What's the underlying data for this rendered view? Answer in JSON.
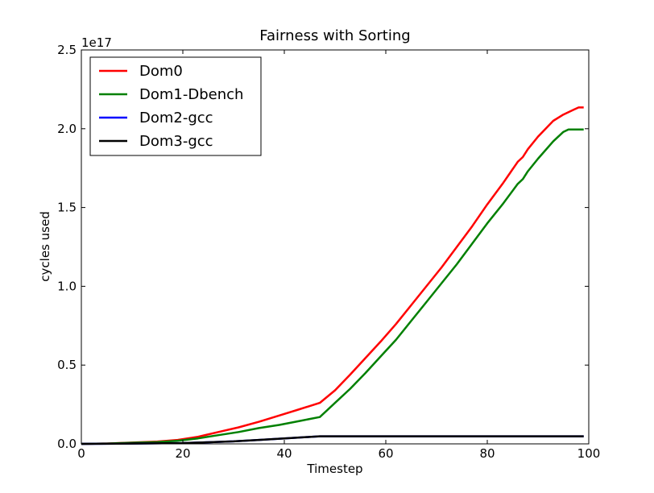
{
  "chart_data": {
    "type": "line",
    "title": "Fairness with Sorting",
    "xlabel": "Timestep",
    "ylabel": "cycles used",
    "y_offset_label": "1e17",
    "xlim": [
      0,
      100
    ],
    "ylim": [
      0,
      2.5
    ],
    "x_ticks": [
      0,
      20,
      40,
      60,
      80,
      100
    ],
    "x_tick_labels": [
      "0",
      "20",
      "40",
      "60",
      "80",
      "100"
    ],
    "y_ticks": [
      0,
      0.5,
      1.0,
      1.5,
      2.0,
      2.5
    ],
    "y_tick_labels": [
      "0.0",
      "0.5",
      "1.0",
      "1.5",
      "2.0",
      "2.5"
    ],
    "grid": false,
    "legend_position": "top-left",
    "series": [
      {
        "name": "Dom0",
        "color": "#ff0000",
        "x": [
          0,
          5,
          10,
          15,
          19,
          23,
          27,
          31,
          35,
          39,
          43,
          47,
          50,
          53,
          56,
          59,
          62,
          65,
          68,
          71,
          74,
          77,
          80,
          83,
          86,
          87,
          88,
          90,
          93,
          95,
          97,
          98,
          99
        ],
        "y": [
          0.0,
          0.002,
          0.008,
          0.015,
          0.025,
          0.045,
          0.075,
          0.105,
          0.14,
          0.18,
          0.22,
          0.26,
          0.34,
          0.44,
          0.545,
          0.65,
          0.76,
          0.88,
          1.0,
          1.12,
          1.25,
          1.38,
          1.52,
          1.65,
          1.79,
          1.82,
          1.87,
          1.95,
          2.05,
          2.09,
          2.12,
          2.135,
          2.135
        ]
      },
      {
        "name": "Dom1-Dbench",
        "color": "#008000",
        "x": [
          0,
          5,
          10,
          15,
          19,
          23,
          27,
          31,
          35,
          39,
          43,
          47,
          50,
          53,
          56,
          59,
          62,
          65,
          68,
          71,
          74,
          77,
          80,
          83,
          86,
          87,
          88,
          90,
          93,
          95,
          96,
          99
        ],
        "y": [
          0.0,
          0.002,
          0.007,
          0.012,
          0.02,
          0.035,
          0.055,
          0.075,
          0.1,
          0.12,
          0.145,
          0.17,
          0.26,
          0.35,
          0.45,
          0.555,
          0.66,
          0.78,
          0.9,
          1.02,
          1.14,
          1.27,
          1.4,
          1.52,
          1.65,
          1.68,
          1.73,
          1.81,
          1.92,
          1.98,
          1.995,
          1.995
        ]
      },
      {
        "name": "Dom2-gcc",
        "color": "#0000ff",
        "x": [
          0,
          10,
          20,
          25,
          30,
          35,
          40,
          45,
          47,
          99
        ],
        "y": [
          0.0,
          0.002,
          0.005,
          0.01,
          0.016,
          0.025,
          0.034,
          0.044,
          0.048,
          0.048
        ]
      },
      {
        "name": "Dom3-gcc",
        "color": "#000000",
        "x": [
          0,
          10,
          20,
          25,
          30,
          35,
          40,
          45,
          47,
          99
        ],
        "y": [
          0.0,
          0.002,
          0.005,
          0.01,
          0.016,
          0.025,
          0.034,
          0.044,
          0.048,
          0.048
        ]
      }
    ]
  }
}
